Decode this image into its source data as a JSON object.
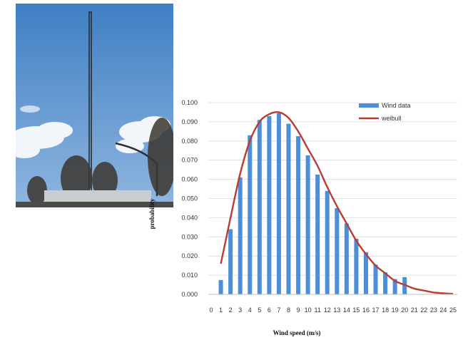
{
  "photo": {
    "colors": {
      "sky_top": "#3f7fc4",
      "sky_bottom": "#8fb6df",
      "cloud": "#f2f5f9",
      "tower": "#2a2a2a",
      "trees": "#3b3630",
      "building": "#c9cdd0"
    }
  },
  "chart_data": {
    "type": "bar",
    "xlabel": "Wind speed (m/s)",
    "ylabel": "probability",
    "ylim": [
      0,
      0.1
    ],
    "yticks": [
      "0.000",
      "0.010",
      "0.020",
      "0.030",
      "0.040",
      "0.050",
      "0.060",
      "0.070",
      "0.080",
      "0.090",
      "0.100"
    ],
    "xticks": [
      "0",
      "1",
      "2",
      "3",
      "4",
      "5",
      "6",
      "7",
      "8",
      "9",
      "10",
      "11",
      "12",
      "13",
      "14",
      "15",
      "16",
      "17",
      "18",
      "19",
      "20",
      "21",
      "22",
      "23",
      "24",
      "25"
    ],
    "xlim": [
      0,
      25
    ],
    "grid": true,
    "legend_position": "top-right",
    "series": [
      {
        "name": "Wind data",
        "type": "bar",
        "color": "#4a8fd8",
        "x": [
          1,
          2,
          3,
          4,
          5,
          6,
          7,
          8,
          9,
          10,
          11,
          12,
          13,
          14,
          15,
          16,
          17,
          18,
          19,
          20
        ],
        "values": [
          0.0075,
          0.034,
          0.061,
          0.083,
          0.091,
          0.093,
          0.0945,
          0.089,
          0.0825,
          0.0725,
          0.0625,
          0.054,
          0.045,
          0.037,
          0.029,
          0.022,
          0.0155,
          0.0115,
          0.008,
          0.009
        ]
      },
      {
        "name": "weibull",
        "type": "line",
        "color": "#b73c33",
        "x": [
          1,
          2,
          3,
          4,
          5,
          6,
          7,
          8,
          9,
          10,
          11,
          12,
          13,
          14,
          15,
          16,
          17,
          18,
          19,
          20,
          21,
          22,
          23,
          24,
          25
        ],
        "values": [
          0.016,
          0.04,
          0.063,
          0.08,
          0.09,
          0.094,
          0.095,
          0.092,
          0.085,
          0.076,
          0.067,
          0.056,
          0.046,
          0.037,
          0.028,
          0.021,
          0.015,
          0.011,
          0.007,
          0.005,
          0.003,
          0.002,
          0.001,
          0.0006,
          0.0003
        ]
      }
    ]
  }
}
